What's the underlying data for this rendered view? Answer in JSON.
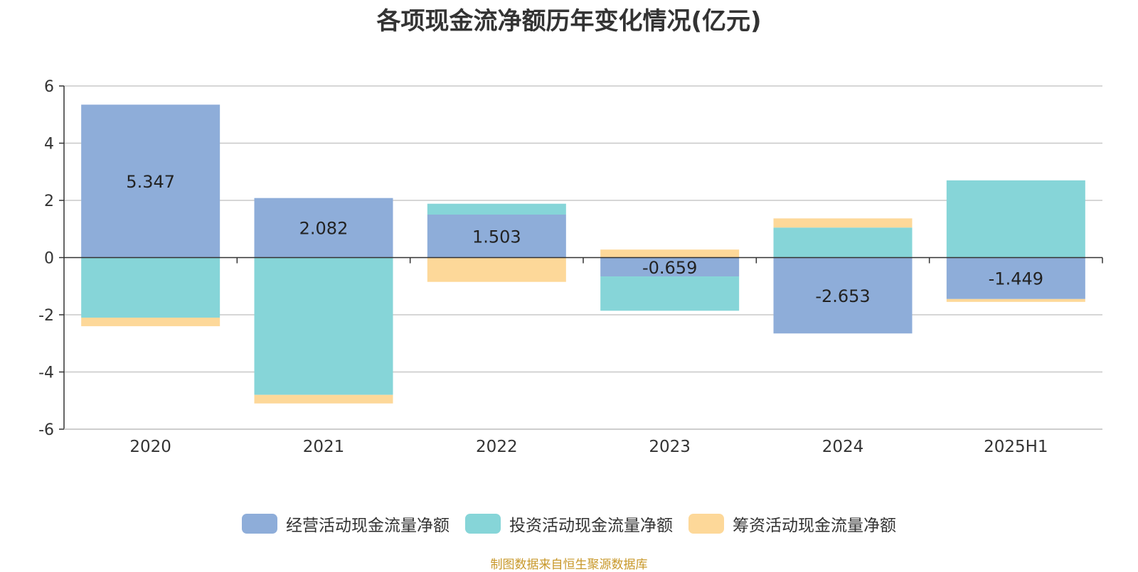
{
  "chart_data": {
    "type": "bar",
    "stacked": true,
    "title": "各项现金流净额历年变化情况(亿元)",
    "categories": [
      "2020",
      "2021",
      "2022",
      "2023",
      "2024",
      "2025H1"
    ],
    "series": [
      {
        "name": "经营活动现金流量净额",
        "color": "#8eadd9",
        "values": [
          5.347,
          2.082,
          1.503,
          -0.659,
          -2.653,
          -1.449
        ]
      },
      {
        "name": "投资活动现金流量净额",
        "color": "#86d5d8",
        "values": [
          -2.1,
          -4.8,
          0.38,
          -1.2,
          1.05,
          2.7
        ]
      },
      {
        "name": "筹资活动现金流量净额",
        "color": "#fdd899",
        "values": [
          -0.3,
          -0.3,
          -0.85,
          0.28,
          0.32,
          -0.1
        ]
      }
    ],
    "data_labels": [
      "5.347",
      "2.082",
      "1.503",
      "-0.659",
      "-2.653",
      "-1.449"
    ],
    "ylim": [
      -6,
      6
    ],
    "yticks": [
      -6,
      -4,
      -2,
      0,
      2,
      4,
      6
    ],
    "xlabel": "",
    "ylabel": "",
    "grid": true,
    "legend_position": "bottom"
  },
  "source_text": "制图数据来自恒生聚源数据库"
}
